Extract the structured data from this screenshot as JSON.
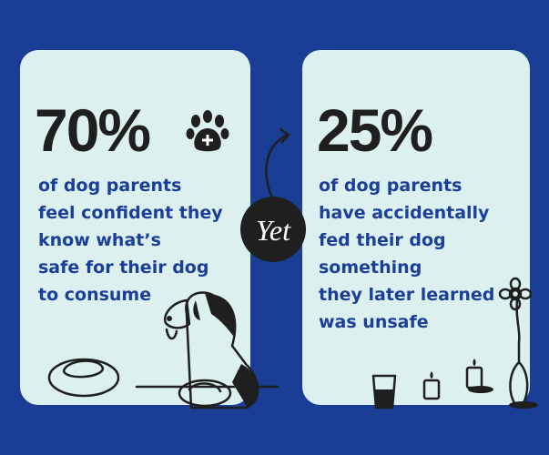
{
  "left_card": {
    "stat": "70%",
    "lines": [
      "of dog parents",
      "feel confident they",
      "know what’s",
      "safe for their dog",
      "to consume"
    ]
  },
  "connector": {
    "label": "Yet"
  },
  "right_card": {
    "stat": "25%",
    "lines": [
      "of dog parents",
      "have accidentally",
      "fed their dog",
      "something",
      "they later learned",
      "was unsafe"
    ]
  }
}
